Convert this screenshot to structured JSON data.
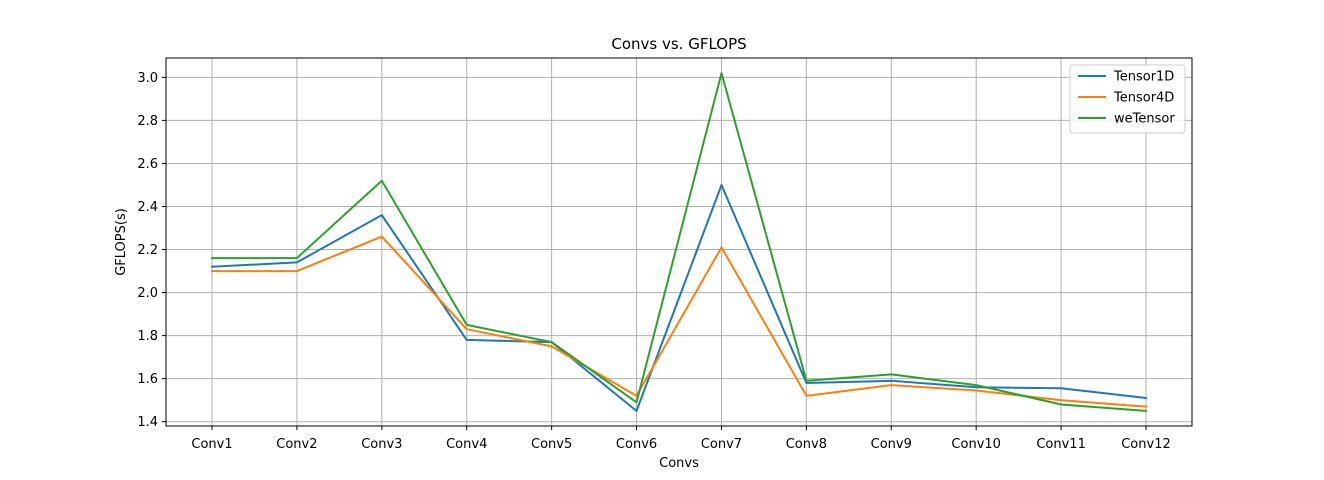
{
  "chart_data": {
    "type": "line",
    "title": "Convs vs. GFLOPS",
    "xlabel": "Convs",
    "ylabel": "GFLOPS(s)",
    "categories": [
      "Conv1",
      "Conv2",
      "Conv3",
      "Conv4",
      "Conv5",
      "Conv6",
      "Conv7",
      "Conv8",
      "Conv9",
      "Conv10",
      "Conv11",
      "Conv12"
    ],
    "ylim": [
      1.38,
      3.09
    ],
    "yticks": [
      "1.4",
      "1.6",
      "1.8",
      "2.0",
      "2.2",
      "2.4",
      "2.6",
      "2.8",
      "3.0"
    ],
    "grid": true,
    "legend_position": "top-right",
    "series": [
      {
        "name": "Tensor1D",
        "color": "#1f77b4",
        "values": [
          2.12,
          2.14,
          2.36,
          1.78,
          1.77,
          1.45,
          2.5,
          1.58,
          1.59,
          1.56,
          1.555,
          1.51
        ]
      },
      {
        "name": "Tensor4D",
        "color": "#ff7f0e",
        "values": [
          2.1,
          2.1,
          2.26,
          1.83,
          1.75,
          1.52,
          2.21,
          1.52,
          1.57,
          1.545,
          1.5,
          1.47
        ]
      },
      {
        "name": "weTensor",
        "color": "#2ca02c",
        "values": [
          2.16,
          2.16,
          2.52,
          1.85,
          1.77,
          1.49,
          3.02,
          1.59,
          1.62,
          1.57,
          1.48,
          1.45
        ]
      }
    ]
  }
}
